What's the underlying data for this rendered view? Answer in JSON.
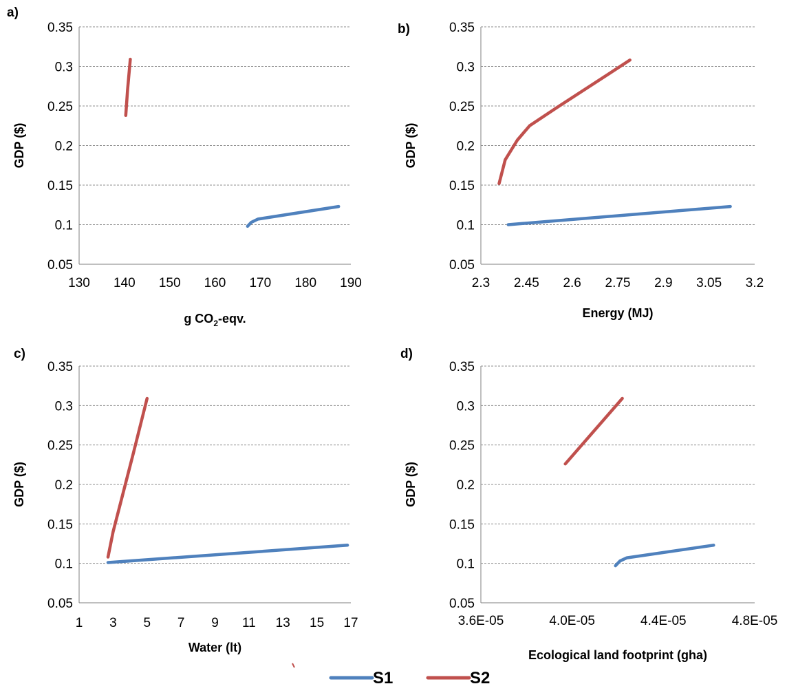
{
  "colors": {
    "S1": "#4F81BD",
    "S2": "#C0504D",
    "grid": "#8c8c8c",
    "axis": "#7f7f7f"
  },
  "legend": {
    "position": "bottom-center",
    "items": [
      "S1",
      "S2"
    ]
  },
  "chart_data": [
    {
      "panel": "a)",
      "type": "line",
      "xlabel": "g CO2-eqv.",
      "xlabel_parts": [
        "g CO",
        "2",
        "-eqv."
      ],
      "ylabel": "GDP ($)",
      "xlim": [
        130,
        190
      ],
      "xticks": [
        130,
        140,
        150,
        160,
        170,
        180,
        190
      ],
      "xtick_labels": [
        "130",
        "140",
        "150",
        "160",
        "170",
        "180",
        "190"
      ],
      "ylim": [
        0.05,
        0.35
      ],
      "yticks": [
        0.05,
        0.1,
        0.15,
        0.2,
        0.25,
        0.3,
        0.35
      ],
      "ytick_labels": [
        "0.05",
        "0.1",
        "0.15",
        "0.2",
        "0.25",
        "0.3",
        "0.35"
      ],
      "grid": true,
      "series": [
        {
          "name": "S1",
          "points": [
            [
              167.2,
              0.098
            ],
            [
              168.0,
              0.103
            ],
            [
              169.5,
              0.107
            ],
            [
              187.3,
              0.123
            ]
          ]
        },
        {
          "name": "S2",
          "points": [
            [
              140.3,
              0.238
            ],
            [
              140.7,
              0.27
            ],
            [
              141.3,
              0.309
            ]
          ]
        }
      ]
    },
    {
      "panel": "b)",
      "type": "line",
      "xlabel": "Energy (MJ)",
      "ylabel": "GDP ($)",
      "xlim": [
        2.3,
        3.2
      ],
      "xticks": [
        2.3,
        2.45,
        2.6,
        2.75,
        2.9,
        3.05,
        3.2
      ],
      "xtick_labels": [
        "2.3",
        "2.45",
        "2.6",
        "2.75",
        "2.9",
        "3.05",
        "3.2"
      ],
      "ylim": [
        0.05,
        0.35
      ],
      "yticks": [
        0.05,
        0.1,
        0.15,
        0.2,
        0.25,
        0.3,
        0.35
      ],
      "ytick_labels": [
        "0.05",
        "0.1",
        "0.15",
        "0.2",
        "0.25",
        "0.3",
        "0.35"
      ],
      "grid": true,
      "series": [
        {
          "name": "S1",
          "points": [
            [
              2.39,
              0.1
            ],
            [
              3.12,
              0.123
            ]
          ]
        },
        {
          "name": "S2",
          "points": [
            [
              2.36,
              0.152
            ],
            [
              2.38,
              0.182
            ],
            [
              2.42,
              0.207
            ],
            [
              2.46,
              0.225
            ],
            [
              2.55,
              0.248
            ],
            [
              2.79,
              0.308
            ]
          ]
        }
      ]
    },
    {
      "panel": "c)",
      "type": "line",
      "xlabel": "Water (lt)",
      "ylabel": "GDP ($)",
      "xlim": [
        1,
        17
      ],
      "xticks": [
        1,
        3,
        5,
        7,
        9,
        11,
        13,
        15,
        17
      ],
      "xtick_labels": [
        "1",
        "3",
        "5",
        "7",
        "9",
        "11",
        "13",
        "15",
        "17"
      ],
      "ylim": [
        0.05,
        0.35
      ],
      "yticks": [
        0.05,
        0.1,
        0.15,
        0.2,
        0.25,
        0.3,
        0.35
      ],
      "ytick_labels": [
        "0.05",
        "0.1",
        "0.15",
        "0.2",
        "0.25",
        "0.3",
        "0.35"
      ],
      "grid": true,
      "series": [
        {
          "name": "S1",
          "points": [
            [
              2.7,
              0.101
            ],
            [
              16.8,
              0.123
            ]
          ]
        },
        {
          "name": "S2",
          "points": [
            [
              2.7,
              0.108
            ],
            [
              3.0,
              0.14
            ],
            [
              3.6,
              0.19
            ],
            [
              4.2,
              0.24
            ],
            [
              5.0,
              0.309
            ]
          ]
        }
      ]
    },
    {
      "panel": "d)",
      "type": "line",
      "xlabel": "Ecological land footprint (gha)",
      "ylabel": "GDP ($)",
      "xlim": [
        3.6e-05,
        4.8e-05
      ],
      "xticks": [
        3.6e-05,
        4e-05,
        4.4e-05,
        4.8e-05
      ],
      "xtick_labels": [
        "3.6E-05",
        "4.0E-05",
        "4.4E-05",
        "4.8E-05"
      ],
      "ylim": [
        0.05,
        0.35
      ],
      "yticks": [
        0.05,
        0.1,
        0.15,
        0.2,
        0.25,
        0.3,
        0.35
      ],
      "ytick_labels": [
        "0.05",
        "0.1",
        "0.15",
        "0.2",
        "0.25",
        "0.3",
        "0.35"
      ],
      "grid": true,
      "series": [
        {
          "name": "S1",
          "points": [
            [
              4.19e-05,
              0.097
            ],
            [
              4.21e-05,
              0.103
            ],
            [
              4.24e-05,
              0.107
            ],
            [
              4.62e-05,
              0.123
            ]
          ]
        },
        {
          "name": "S2",
          "points": [
            [
              3.97e-05,
              0.226
            ],
            [
              4.22e-05,
              0.309
            ]
          ]
        }
      ]
    }
  ]
}
